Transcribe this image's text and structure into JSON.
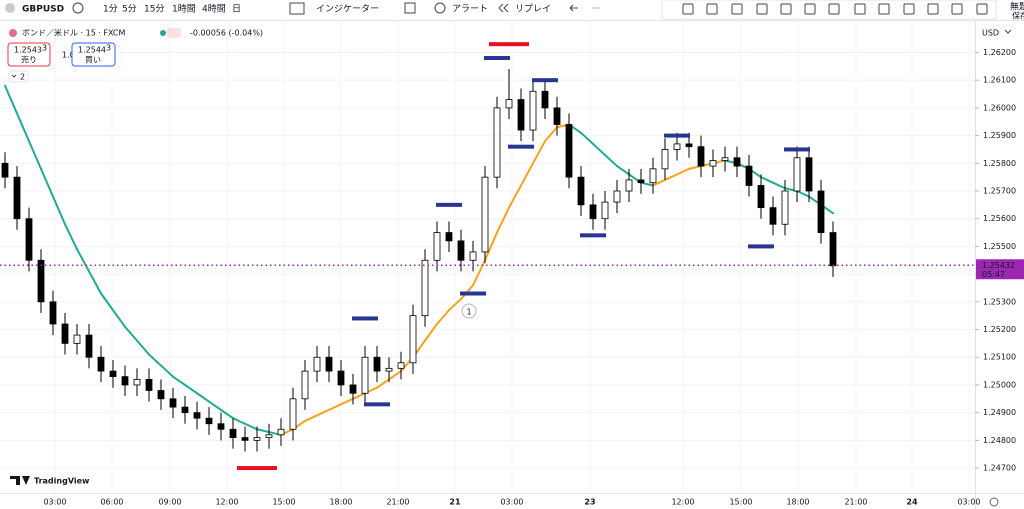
{
  "toolbar": {
    "symbol": "GBPUSD",
    "intervals": [
      {
        "label": "1分",
        "selected": false
      },
      {
        "label": "5分",
        "selected": false
      },
      {
        "label": "15分",
        "selected": true
      },
      {
        "label": "1時間",
        "selected": false
      },
      {
        "label": "4時間",
        "selected": false
      },
      {
        "label": "日",
        "selected": false
      }
    ],
    "indicators": "インジケーター",
    "alert": "アラート",
    "replay": "リプレイ"
  },
  "top_right": {
    "title": "無題",
    "save": "保存"
  },
  "legend": {
    "instrument": "ボンド／米ドル · 15 · FXCM",
    "change": "-0.00056 (-0.04%)",
    "sell": {
      "price": 1.2543,
      "pip": 3,
      "label": "売り"
    },
    "spread": "1.0",
    "buy": {
      "price": 1.2544,
      "pip": 3,
      "label": "買い"
    },
    "collapsed_count": 2
  },
  "chart_data": {
    "type": "candlestick",
    "currency": "USD",
    "watermark": "TradingView",
    "up_color": "#ffffff",
    "down_color": "#000000",
    "candles": [
      [
        1.258,
        1.2584,
        1.2571,
        1.2575
      ],
      [
        1.2575,
        1.2579,
        1.2556,
        1.256
      ],
      [
        1.256,
        1.2564,
        1.2541,
        1.2545
      ],
      [
        1.2545,
        1.2549,
        1.2526,
        1.253
      ],
      [
        1.253,
        1.2534,
        1.2518,
        1.2522
      ],
      [
        1.2522,
        1.2526,
        1.2511,
        1.2515
      ],
      [
        1.2515,
        1.2522,
        1.2511,
        1.2518
      ],
      [
        1.2518,
        1.2522,
        1.2506,
        1.251
      ],
      [
        1.251,
        1.2514,
        1.2501,
        1.2505
      ],
      [
        1.2505,
        1.2509,
        1.2499,
        1.2503
      ],
      [
        1.2503,
        1.2507,
        1.2496,
        1.25
      ],
      [
        1.25,
        1.2506,
        1.2496,
        1.2502
      ],
      [
        1.2502,
        1.2506,
        1.2494,
        1.2498
      ],
      [
        1.2498,
        1.2502,
        1.2491,
        1.2495
      ],
      [
        1.2495,
        1.2499,
        1.2488,
        1.2492
      ],
      [
        1.2492,
        1.2496,
        1.2486,
        1.249
      ],
      [
        1.249,
        1.2494,
        1.2484,
        1.2488
      ],
      [
        1.2488,
        1.2492,
        1.2482,
        1.2486
      ],
      [
        1.2486,
        1.249,
        1.248,
        1.2484
      ],
      [
        1.2484,
        1.2488,
        1.2477,
        1.2481
      ],
      [
        1.2481,
        1.2485,
        1.2476,
        1.248
      ],
      [
        1.248,
        1.2485,
        1.2476,
        1.2481
      ],
      [
        1.2481,
        1.2486,
        1.2477,
        1.2482
      ],
      [
        1.2482,
        1.2488,
        1.2478,
        1.2484
      ],
      [
        1.2484,
        1.2499,
        1.248,
        1.2495
      ],
      [
        1.2495,
        1.2509,
        1.2491,
        1.2505
      ],
      [
        1.2505,
        1.2514,
        1.2501,
        1.251
      ],
      [
        1.251,
        1.2514,
        1.2501,
        1.2505
      ],
      [
        1.2505,
        1.2509,
        1.2496,
        1.25
      ],
      [
        1.25,
        1.2504,
        1.2493,
        1.2497
      ],
      [
        1.2497,
        1.2514,
        1.2493,
        1.251
      ],
      [
        1.251,
        1.2514,
        1.2501,
        1.2505
      ],
      [
        1.2505,
        1.251,
        1.2501,
        1.2506
      ],
      [
        1.2506,
        1.2512,
        1.2502,
        1.2508
      ],
      [
        1.2508,
        1.2529,
        1.2504,
        1.2525
      ],
      [
        1.2525,
        1.2549,
        1.2521,
        1.2545
      ],
      [
        1.2545,
        1.2559,
        1.2541,
        1.2555
      ],
      [
        1.2555,
        1.2559,
        1.2548,
        1.2552
      ],
      [
        1.2552,
        1.2556,
        1.2541,
        1.2545
      ],
      [
        1.2545,
        1.2552,
        1.2541,
        1.2548
      ],
      [
        1.2548,
        1.2579,
        1.2544,
        1.2575
      ],
      [
        1.2575,
        1.2604,
        1.2571,
        1.26
      ],
      [
        1.26,
        1.2614,
        1.2596,
        1.2603
      ],
      [
        1.2603,
        1.2607,
        1.2588,
        1.2592
      ],
      [
        1.2592,
        1.261,
        1.2588,
        1.2606
      ],
      [
        1.2606,
        1.261,
        1.2596,
        1.26
      ],
      [
        1.26,
        1.2604,
        1.259,
        1.2594
      ],
      [
        1.2594,
        1.2598,
        1.2571,
        1.2575
      ],
      [
        1.2575,
        1.2579,
        1.2561,
        1.2565
      ],
      [
        1.2565,
        1.2569,
        1.2556,
        1.256
      ],
      [
        1.256,
        1.257,
        1.2556,
        1.2566
      ],
      [
        1.2566,
        1.2574,
        1.2562,
        1.257
      ],
      [
        1.257,
        1.2578,
        1.2566,
        1.2574
      ],
      [
        1.2574,
        1.2578,
        1.2569,
        1.2573
      ],
      [
        1.2573,
        1.2582,
        1.2569,
        1.2578
      ],
      [
        1.2578,
        1.2589,
        1.2574,
        1.2585
      ],
      [
        1.2585,
        1.2591,
        1.2581,
        1.2587
      ],
      [
        1.2587,
        1.2591,
        1.2582,
        1.2586
      ],
      [
        1.2586,
        1.259,
        1.2575,
        1.2579
      ],
      [
        1.2579,
        1.2585,
        1.2575,
        1.2581
      ],
      [
        1.2581,
        1.2586,
        1.2577,
        1.2582
      ],
      [
        1.2582,
        1.2586,
        1.2575,
        1.2579
      ],
      [
        1.2579,
        1.2583,
        1.2568,
        1.2572
      ],
      [
        1.2572,
        1.2576,
        1.256,
        1.2564
      ],
      [
        1.2564,
        1.2568,
        1.2554,
        1.2558
      ],
      [
        1.2558,
        1.2574,
        1.2554,
        1.257
      ],
      [
        1.257,
        1.2586,
        1.2566,
        1.2582
      ],
      [
        1.2582,
        1.2586,
        1.2566,
        1.257
      ],
      [
        1.257,
        1.2574,
        1.2551,
        1.2555
      ],
      [
        1.2555,
        1.2559,
        1.2539,
        1.2543
      ]
    ],
    "moving_average": {
      "rising_color": "#f7a21b",
      "falling_color": "#22ab94",
      "values": [
        1.2608,
        1.2598,
        1.2588,
        1.2578,
        1.2568,
        1.2558,
        1.2549,
        1.2541,
        1.2533,
        1.2527,
        1.2521,
        1.2516,
        1.2511,
        1.2507,
        1.2503,
        1.25,
        1.2497,
        1.2494,
        1.2491,
        1.2488,
        1.2486,
        1.2484,
        1.2483,
        1.2482,
        1.2484,
        1.2487,
        1.2489,
        1.2491,
        1.2493,
        1.2495,
        1.2497,
        1.2499,
        1.2502,
        1.2505,
        1.251,
        1.2516,
        1.2522,
        1.2527,
        1.2531,
        1.2536,
        1.2545,
        1.2555,
        1.2564,
        1.2572,
        1.258,
        1.2588,
        1.2593,
        1.2594,
        1.2591,
        1.2587,
        1.2583,
        1.2579,
        1.2576,
        1.2573,
        1.2572,
        1.2574,
        1.2576,
        1.2578,
        1.2579,
        1.258,
        1.2581,
        1.258,
        1.2578,
        1.2575,
        1.2573,
        1.2571,
        1.257,
        1.2568,
        1.2565,
        1.2562
      ]
    },
    "markers": [
      {
        "index": 21,
        "price": 1.247,
        "color": "#e8101a"
      },
      {
        "index": 42,
        "price": 1.2623,
        "color": "#e8101a"
      },
      {
        "index": 30,
        "price": 1.2524,
        "color": "#283593"
      },
      {
        "index": 31,
        "price": 1.2493,
        "color": "#283593"
      },
      {
        "index": 37,
        "price": 1.2565,
        "color": "#283593"
      },
      {
        "index": 39,
        "price": 1.2533,
        "color": "#283593"
      },
      {
        "index": 41,
        "price": 1.2618,
        "color": "#283593"
      },
      {
        "index": 43,
        "price": 1.2586,
        "color": "#283593"
      },
      {
        "index": 45,
        "price": 1.261,
        "color": "#283593"
      },
      {
        "index": 49,
        "price": 1.2554,
        "color": "#283593"
      },
      {
        "index": 56,
        "price": 1.259,
        "color": "#283593"
      },
      {
        "index": 63,
        "price": 1.255,
        "color": "#283593"
      },
      {
        "index": 66,
        "price": 1.2585,
        "color": "#283593"
      }
    ],
    "annotation": "1",
    "last_price": {
      "value": 1.25432,
      "countdown": "05:47",
      "color": "#9c27b0"
    },
    "ylim": [
      1.2461,
      1.2631
    ],
    "yticks": [
      {
        "value": 1.262,
        "label": "1.26200"
      },
      {
        "value": 1.261,
        "label": "1.26100"
      },
      {
        "value": 1.26,
        "label": "1.26000"
      },
      {
        "value": 1.259,
        "label": "1.25900"
      },
      {
        "value": 1.258,
        "label": "1.25800"
      },
      {
        "value": 1.257,
        "label": "1.25700"
      },
      {
        "value": 1.256,
        "label": "1.25600"
      },
      {
        "value": 1.255,
        "label": "1.25500"
      },
      {
        "value": 1.254,
        "label": "1.25400"
      },
      {
        "value": 1.253,
        "label": "1.25300"
      },
      {
        "value": 1.252,
        "label": "1.25200"
      },
      {
        "value": 1.251,
        "label": "1.25100"
      },
      {
        "value": 1.25,
        "label": "1.25000"
      },
      {
        "value": 1.249,
        "label": "1.24900"
      },
      {
        "value": 1.248,
        "label": "1.24800"
      },
      {
        "value": 1.247,
        "label": "1.24700"
      }
    ],
    "xtick_labels": [
      "03:00",
      "06:00",
      "09:00",
      "12:00",
      "15:00",
      "18:00",
      "21:00",
      "21",
      "03:00",
      "23",
      "12:00",
      "15:00",
      "18:00",
      "21:00",
      "24",
      "03:00"
    ],
    "grid": true
  }
}
